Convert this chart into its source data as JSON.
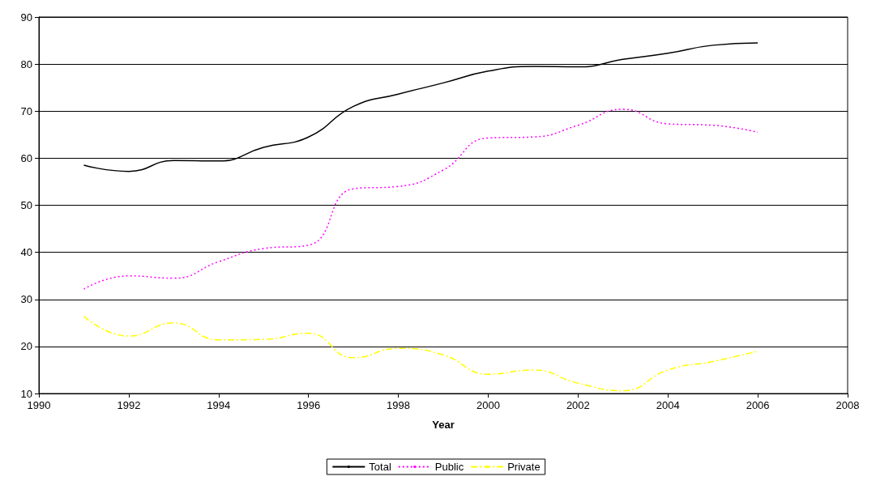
{
  "chart_data": {
    "type": "line",
    "xlabel": "Year",
    "x": [
      1991,
      1992,
      1993,
      1994,
      1995,
      1996,
      1997,
      1998,
      1999,
      2000,
      2001,
      2002,
      2003,
      2004,
      2005,
      2006
    ],
    "series": [
      {
        "name": "Total",
        "color": "#000000",
        "line_style": "solid",
        "values": [
          58.5,
          57.2,
          59.5,
          59.4,
          62.3,
          64.5,
          71,
          73.6,
          76,
          78.5,
          79.5,
          79.4,
          81,
          82.3,
          84,
          84.5
        ]
      },
      {
        "name": "Public",
        "color": "#ff00ff",
        "line_style": "dotted",
        "values": [
          32.2,
          35,
          34.5,
          38,
          40.8,
          41.5,
          53.5,
          54,
          57.5,
          64.3,
          64.5,
          67,
          70.4,
          67.3,
          67,
          65.5
        ]
      },
      {
        "name": "Private",
        "color": "#ffff00",
        "line_style": "dashed",
        "values": [
          26.4,
          22.2,
          25,
          21.4,
          21.5,
          22.8,
          17.6,
          19.6,
          18.2,
          14.1,
          15,
          12.2,
          10.6,
          15,
          16.8,
          19
        ]
      }
    ],
    "xlim": [
      1990,
      2008
    ],
    "xticks": [
      1990,
      1992,
      1994,
      1996,
      1998,
      2000,
      2002,
      2004,
      2006,
      2008
    ],
    "ylim": [
      10,
      90
    ],
    "yticks": [
      10,
      20,
      30,
      40,
      50,
      60,
      70,
      80,
      90
    ],
    "grid": "y",
    "legend": "bottom",
    "marker": "none"
  }
}
